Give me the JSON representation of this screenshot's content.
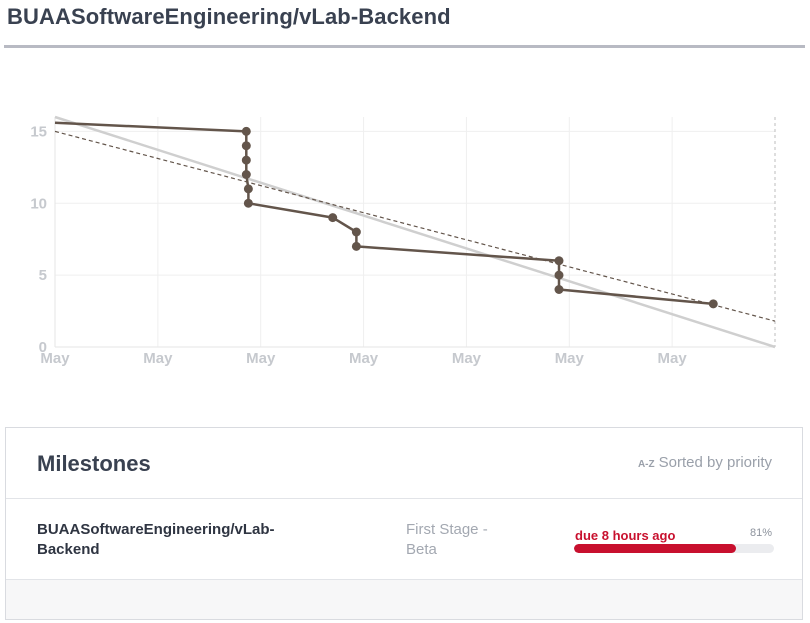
{
  "header": {
    "title": "BUAASoftwareEngineering/vLab-Backend"
  },
  "chart_data": {
    "type": "line",
    "ylim": [
      0,
      16
    ],
    "yticks": [
      "0",
      "5",
      "10",
      "15"
    ],
    "xticks": [
      "May",
      "May",
      "May",
      "May",
      "May",
      "May",
      "May"
    ],
    "series": [
      {
        "values": [
          [
            0,
            15.6
          ],
          [
            1.86,
            15
          ],
          [
            1.86,
            14
          ],
          [
            1.86,
            13
          ],
          [
            1.86,
            12
          ],
          [
            1.88,
            11
          ],
          [
            1.88,
            10
          ],
          [
            2.7,
            9
          ],
          [
            2.93,
            8
          ],
          [
            2.93,
            7
          ],
          [
            4.9,
            6
          ],
          [
            4.9,
            5
          ],
          [
            4.9,
            4
          ],
          [
            6.4,
            3
          ]
        ]
      }
    ],
    "ideal_line": [
      [
        0,
        16
      ],
      [
        7,
        0
      ]
    ],
    "trend_line": [
      [
        0,
        15
      ],
      [
        7,
        1.8
      ]
    ],
    "colors": {
      "actual": "#63554b",
      "ideal": "#cfcfcf",
      "trend": "#63554b"
    }
  },
  "milestones": {
    "title": "Milestones",
    "sort_icon": "A-Z",
    "sort_label": "Sorted by priority",
    "items": [
      {
        "repo": "BUAASoftwareEngineering/vLab-Backend",
        "milestone": "First Stage - Beta",
        "due": "due 8 hours ago",
        "percent_label": "81%",
        "progress": 0.81,
        "color": "#c8102e"
      }
    ]
  }
}
